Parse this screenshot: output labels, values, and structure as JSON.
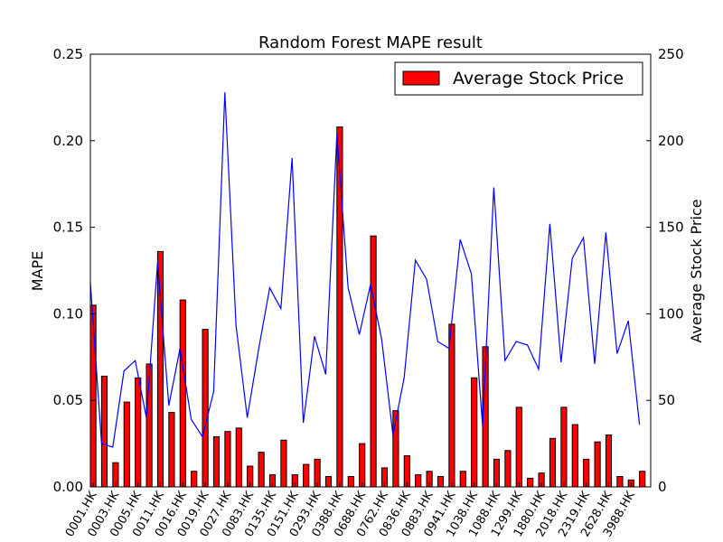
{
  "chart_data": {
    "type": "bar+line",
    "title": "Random Forest MAPE result",
    "ylabel_left": "MAPE",
    "ylabel_right": "Average Stock Price",
    "ylim_left": [
      0,
      0.25
    ],
    "ylim_right": [
      0,
      250
    ],
    "yticks_left": [
      "0.00",
      "0.05",
      "0.10",
      "0.15",
      "0.20",
      "0.25"
    ],
    "yticks_right": [
      "0",
      "50",
      "100",
      "150",
      "200",
      "250"
    ],
    "xtick_labels": [
      "0001.HK",
      "0003.HK",
      "0005.HK",
      "0011.HK",
      "0016.HK",
      "0019.HK",
      "0027.HK",
      "0083.HK",
      "0135.HK",
      "0151.HK",
      "0293.HK",
      "0388.HK",
      "0688.HK",
      "0762.HK",
      "0836.HK",
      "0883.HK",
      "0941.HK",
      "1038.HK",
      "1088.HK",
      "1299.HK",
      "1880.HK",
      "2018.HK",
      "2319.HK",
      "2628.HK",
      "3988.HK"
    ],
    "n_points": 50,
    "legend": {
      "label": "Average Stock Price",
      "position": "top-right"
    },
    "series": [
      {
        "name": "Average Stock Price",
        "kind": "bar",
        "axis": "right",
        "color": "#ff0000",
        "values": [
          105,
          64,
          14,
          49,
          63,
          71,
          136,
          43,
          108,
          9,
          91,
          29,
          32,
          34,
          12,
          20,
          7,
          27,
          7,
          13,
          16,
          6,
          208,
          6,
          25,
          145,
          11,
          44,
          18,
          7,
          9,
          6,
          94,
          9,
          63,
          81,
          16,
          21,
          46,
          5,
          8,
          28,
          46,
          36,
          16,
          26,
          30,
          6,
          4,
          9
        ]
      },
      {
        "name": "",
        "kind": "line",
        "axis": "left",
        "color": "#0000ff",
        "values": [
          0.118,
          0.025,
          0.023,
          0.067,
          0.073,
          0.04,
          0.13,
          0.047,
          0.08,
          0.039,
          0.029,
          0.055,
          0.228,
          0.093,
          0.04,
          0.079,
          0.115,
          0.103,
          0.19,
          0.037,
          0.087,
          0.065,
          0.204,
          0.115,
          0.088,
          0.117,
          0.085,
          0.03,
          0.063,
          0.131,
          0.12,
          0.084,
          0.08,
          0.143,
          0.123,
          0.035,
          0.173,
          0.073,
          0.084,
          0.082,
          0.068,
          0.152,
          0.072,
          0.132,
          0.144,
          0.071,
          0.147,
          0.077,
          0.096,
          0.036
        ]
      }
    ]
  }
}
